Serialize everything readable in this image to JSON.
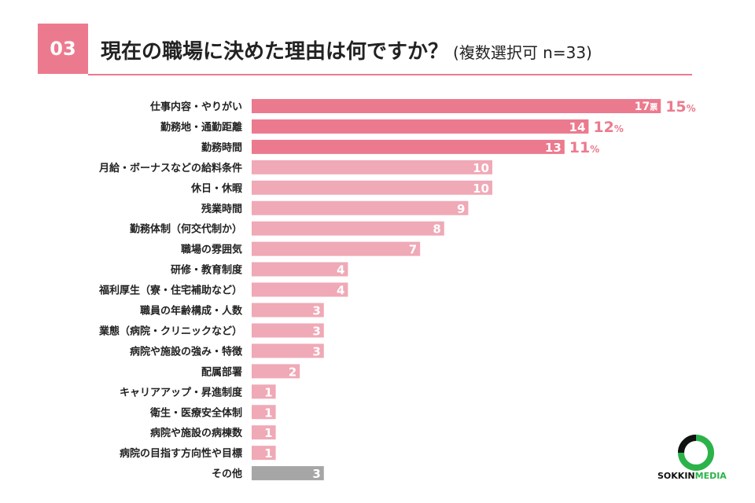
{
  "header": {
    "number": "03",
    "title": "現在の職場に決めた理由は何ですか？",
    "subtitle": "(複数選択可 n=33)"
  },
  "colors": {
    "accent": "#ec7a8e",
    "top_bar": "#ec7a8e",
    "regular_bar": "#f0a9b6",
    "other_bar": "#a6a6a6",
    "percent_text": "#ec7a8e"
  },
  "chart_data": {
    "type": "bar",
    "orientation": "horizontal",
    "title": "現在の職場に決めた理由は何ですか？",
    "categories": [
      "仕事内容・やりがい",
      "勤務地・通勤距離",
      "勤務時間",
      "月給・ボーナスなどの給料条件",
      "休日・休暇",
      "残業時間",
      "勤務体制（何交代制か）",
      "職場の雰囲気",
      "研修・教育制度",
      "福利厚生（寮・住宅補助など）",
      "職員の年齢構成・人数",
      "業態（病院・クリニックなど）",
      "病院や施設の強み・特徴",
      "配属部署",
      "キャリアアップ・昇進制度",
      "衛生・医療安全体制",
      "病院や施設の病棟数",
      "病院の目指す方向性や目標",
      "その他"
    ],
    "values": [
      17,
      14,
      13,
      10,
      10,
      9,
      8,
      7,
      4,
      4,
      3,
      3,
      3,
      2,
      1,
      1,
      1,
      1,
      3
    ],
    "unit_first": "票",
    "percent_labels": [
      {
        "index": 0,
        "value": "15",
        "unit": "%"
      },
      {
        "index": 1,
        "value": "12",
        "unit": "%"
      },
      {
        "index": 2,
        "value": "11",
        "unit": "%"
      }
    ],
    "highlight_top": 3,
    "other_index": 18
  },
  "logo": {
    "text_a": "SOKKIN",
    "text_b": "MEDIA"
  }
}
